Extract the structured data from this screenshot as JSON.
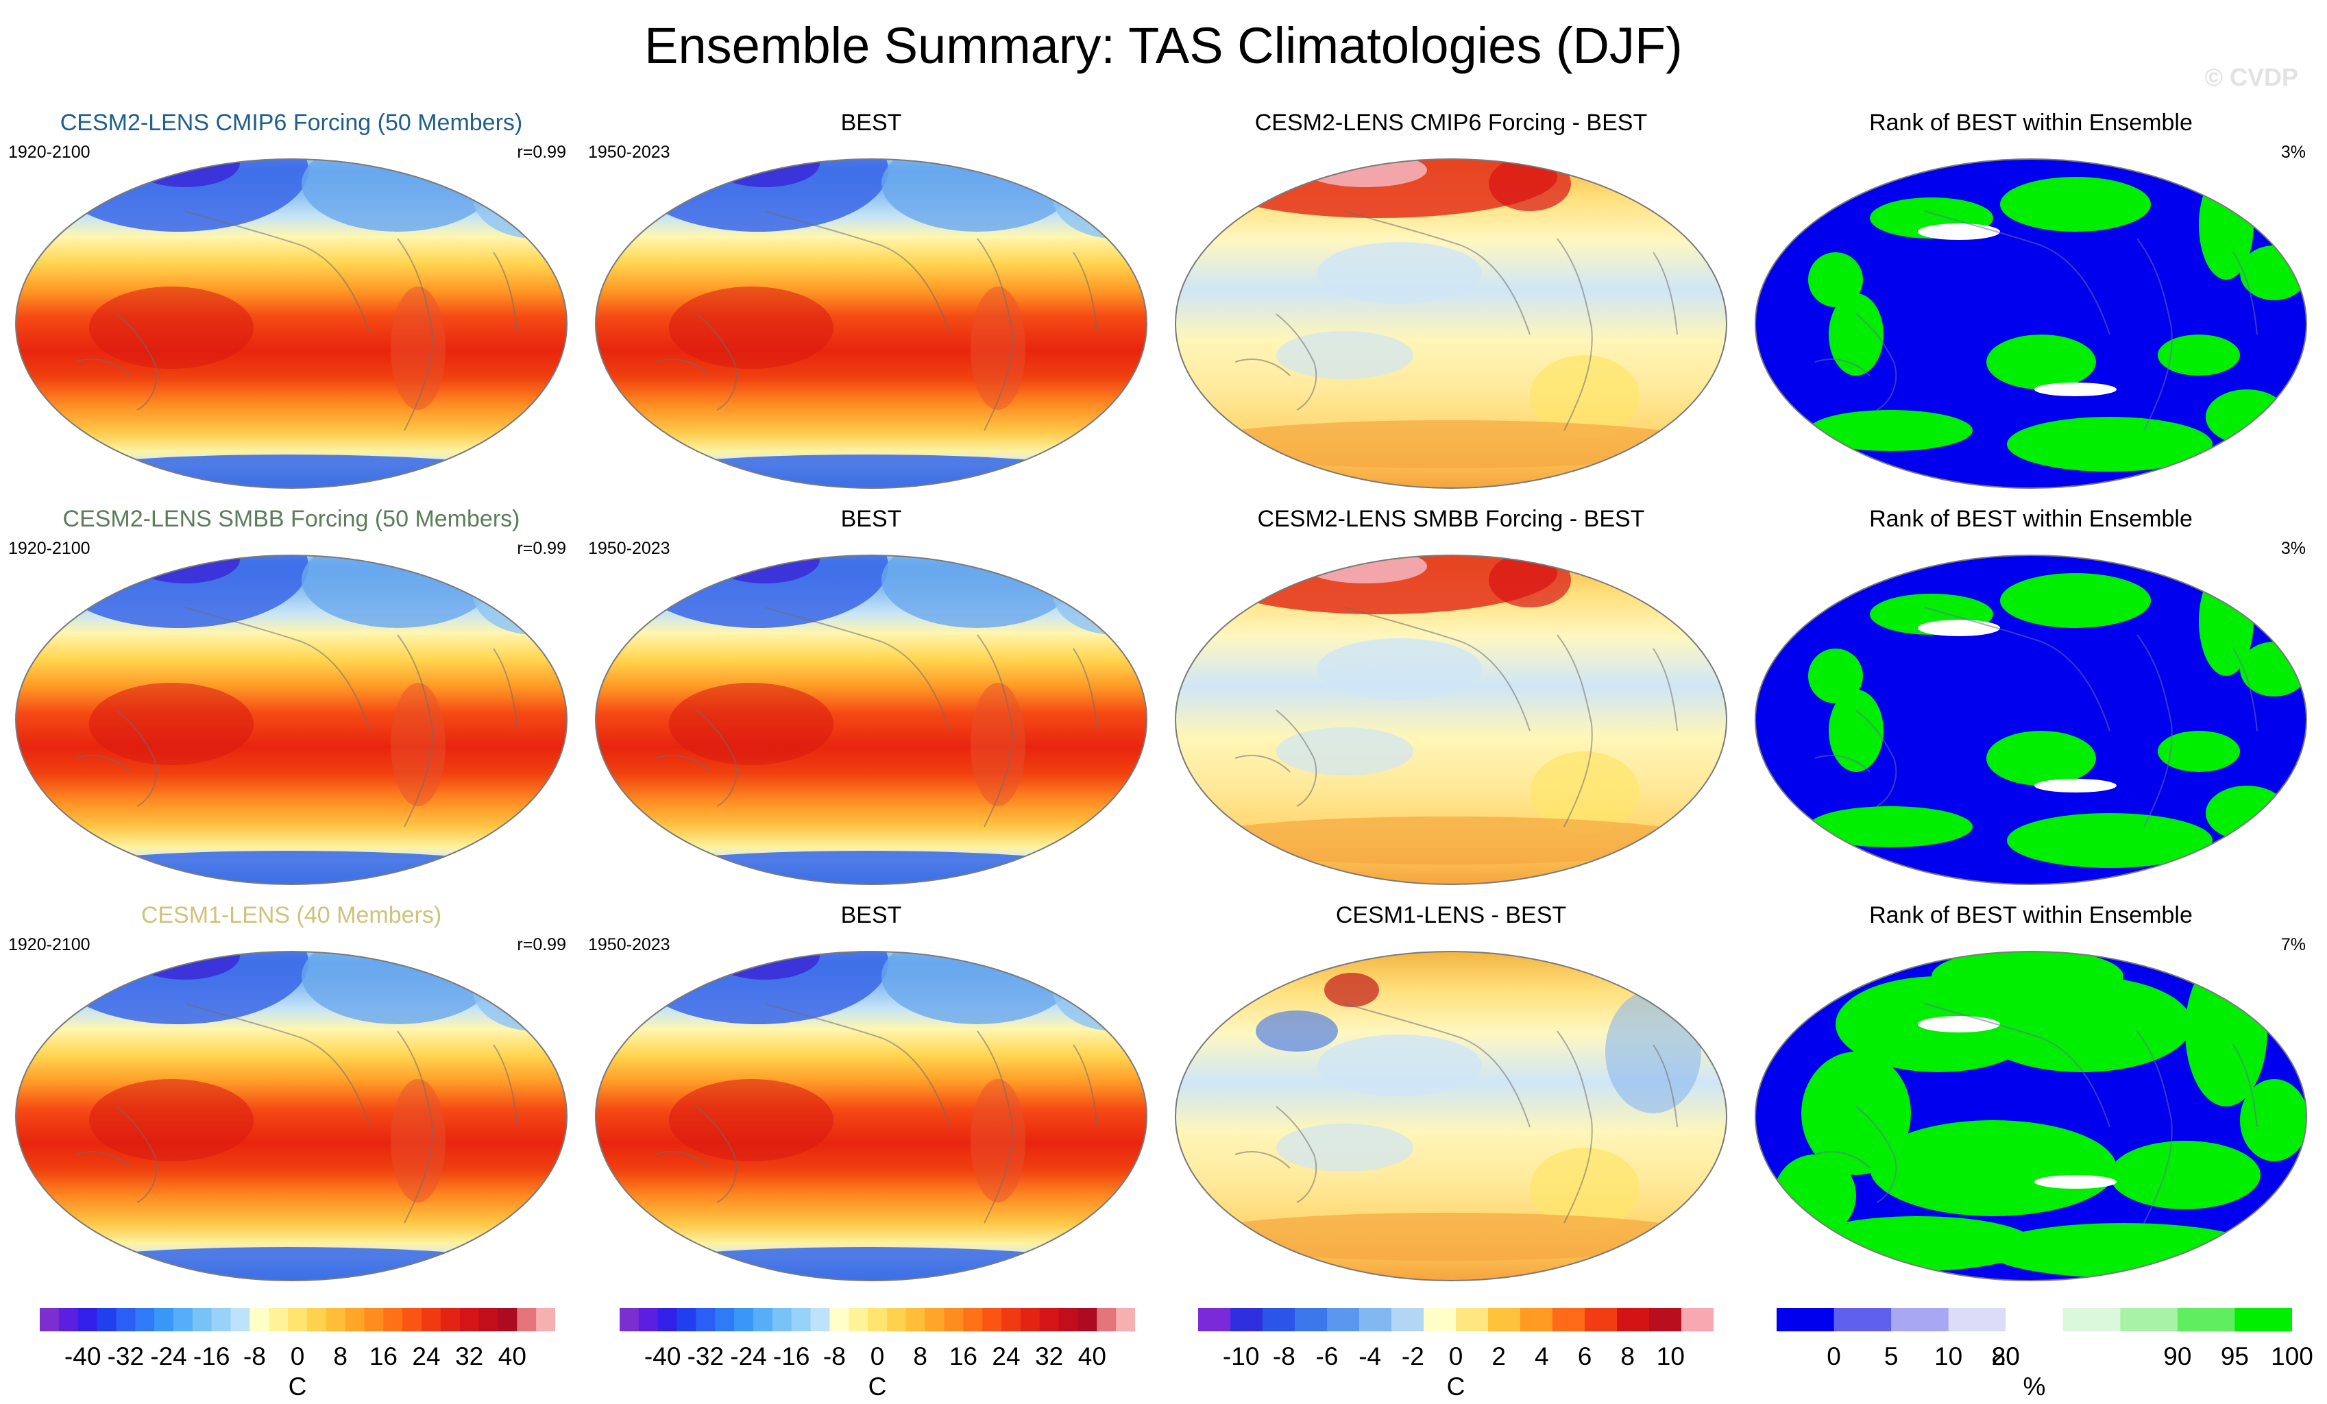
{
  "title": "Ensemble Summary: TAS Climatologies (DJF)",
  "watermark": "© CVDP",
  "colors": {
    "title_blue": "#1f5f8b",
    "title_green": "#5a7d5a",
    "title_tan": "#cfc27a",
    "rank_blue": "#0000ee",
    "rank_green": "#00ee00"
  },
  "rows": [
    {
      "model": {
        "title": "CESM2-LENS CMIP6 Forcing (50 Members)",
        "period": "1920-2100",
        "stat": "r=0.99",
        "title_color": "title_blue"
      },
      "obs": {
        "title": "BEST",
        "period": "1950-2023"
      },
      "diff": {
        "title": "CESM2-LENS CMIP6 Forcing - BEST"
      },
      "rank": {
        "title": "Rank of BEST within Ensemble",
        "stat": "3%"
      }
    },
    {
      "model": {
        "title": "CESM2-LENS SMBB Forcing (50 Members)",
        "period": "1920-2100",
        "stat": "r=0.99",
        "title_color": "title_green"
      },
      "obs": {
        "title": "BEST",
        "period": "1950-2023"
      },
      "diff": {
        "title": "CESM2-LENS SMBB Forcing - BEST"
      },
      "rank": {
        "title": "Rank of BEST within Ensemble",
        "stat": "3%"
      }
    },
    {
      "model": {
        "title": "CESM1-LENS (40 Members)",
        "period": "1920-2100",
        "stat": "r=0.99",
        "title_color": "title_tan"
      },
      "obs": {
        "title": "BEST",
        "period": "1950-2023"
      },
      "diff": {
        "title": "CESM1-LENS - BEST"
      },
      "rank": {
        "title": "Rank of BEST within Ensemble",
        "stat": "7%"
      }
    }
  ],
  "colorbars": [
    {
      "name": "climatology-model",
      "unit": "C",
      "tick_labels": [
        "-40",
        "-32",
        "-24",
        "-16",
        "-8",
        "0",
        "8",
        "16",
        "24",
        "32",
        "40"
      ],
      "colors": [
        "#7b2fd0",
        "#5a1fe0",
        "#3320e8",
        "#2040f0",
        "#2a5ef5",
        "#2f7bf7",
        "#3a96f7",
        "#55aef7",
        "#78c2f7",
        "#98d2f8",
        "#bde2f9",
        "#ffffc8",
        "#fff39a",
        "#ffe470",
        "#ffd24e",
        "#ffbd38",
        "#ffa528",
        "#ff8c1e",
        "#ff7218",
        "#fb5514",
        "#f23a12",
        "#e42412",
        "#d41416",
        "#c20d1c",
        "#ac0b22",
        "#e2747a",
        "#f7b0b0"
      ]
    },
    {
      "name": "climatology-obs",
      "unit": "C",
      "tick_labels": [
        "-40",
        "-32",
        "-24",
        "-16",
        "-8",
        "0",
        "8",
        "16",
        "24",
        "32",
        "40"
      ],
      "colors": [
        "#7b2fd0",
        "#5a1fe0",
        "#3320e8",
        "#2040f0",
        "#2a5ef5",
        "#2f7bf7",
        "#3a96f7",
        "#55aef7",
        "#78c2f7",
        "#98d2f8",
        "#bde2f9",
        "#ffffc8",
        "#fff39a",
        "#ffe470",
        "#ffd24e",
        "#ffbd38",
        "#ffa528",
        "#ff8c1e",
        "#ff7218",
        "#fb5514",
        "#f23a12",
        "#e42412",
        "#d41416",
        "#c20d1c",
        "#ac0b22",
        "#e2747a",
        "#f7b0b0"
      ]
    },
    {
      "name": "difference",
      "unit": "C",
      "tick_labels": [
        "-10",
        "-8",
        "-6",
        "-4",
        "-2",
        "0",
        "2",
        "4",
        "6",
        "8",
        "10"
      ],
      "colors": [
        "#7a2ad8",
        "#2f2fe0",
        "#2a55e8",
        "#3c78ec",
        "#5a98ef",
        "#82b8f2",
        "#b2d6f4",
        "#ffffc8",
        "#ffe680",
        "#ffc23a",
        "#ff9a22",
        "#ff6a18",
        "#f23c12",
        "#d41414",
        "#b80e1e",
        "#f7a8b0"
      ]
    },
    {
      "name": "rank",
      "unit": "%",
      "tick_labels": [
        "0",
        "5",
        "10",
        "20",
        "80",
        "90",
        "95",
        "100"
      ],
      "colors": [
        "#0000ee",
        "#6060ee",
        "#a8a8f2",
        "#dcdcf8",
        "#ffffff",
        "#dcf8dc",
        "#a8f2a8",
        "#60ee60",
        "#00ee00"
      ]
    }
  ]
}
